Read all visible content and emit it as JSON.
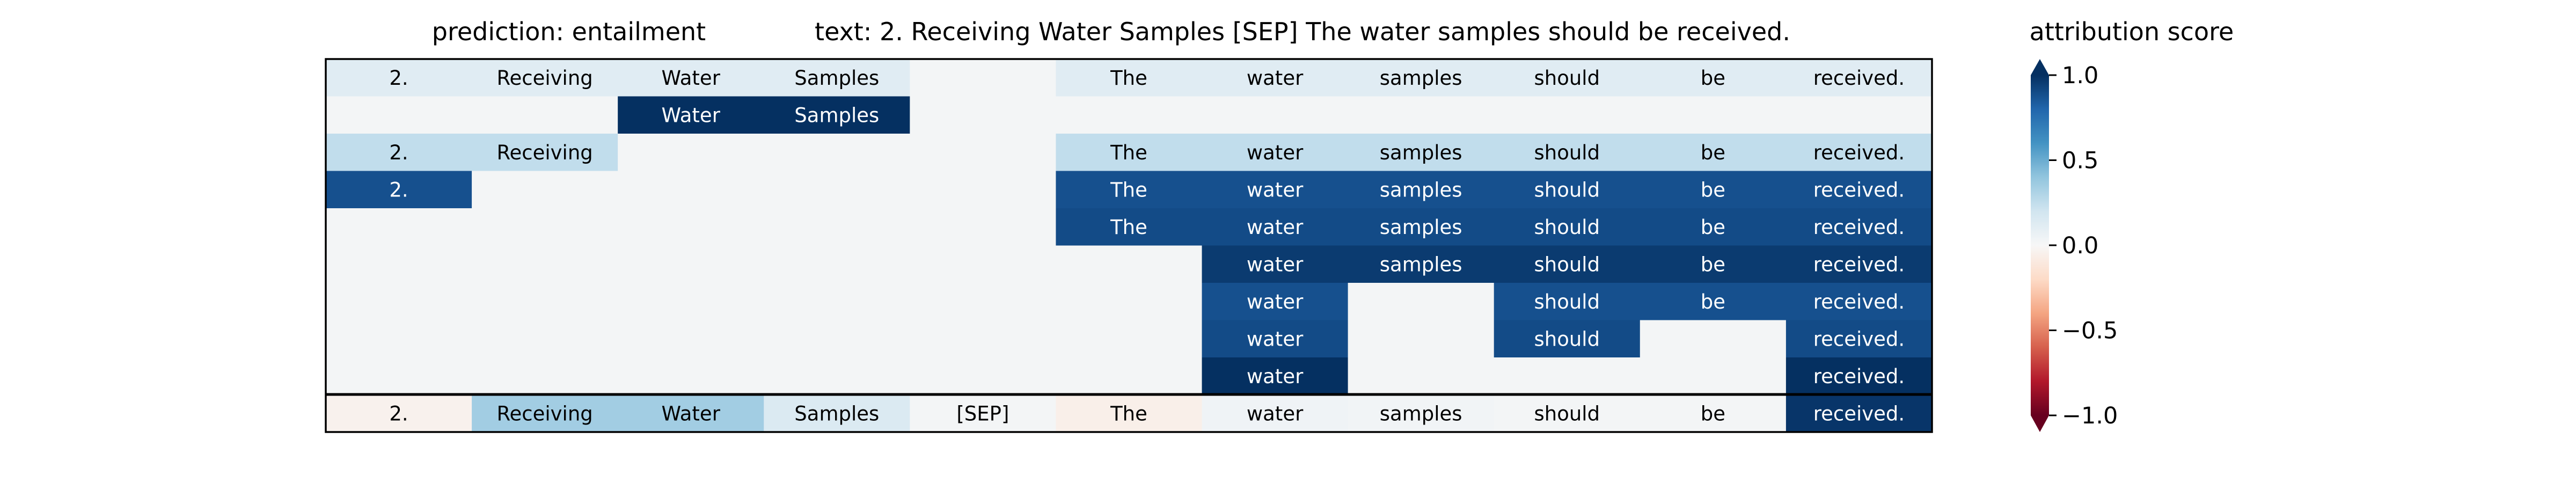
{
  "chart_data": {
    "type": "heatmap",
    "title_prediction": "prediction:  entailment",
    "title_text": "text:  2. Receiving Water Samples [SEP] The water samples should be received.",
    "colorbar": {
      "label": "attribution score",
      "ticks": [
        "1.0",
        "0.5",
        "0.0",
        "−0.5",
        "−1.0"
      ],
      "tick_values": [
        1.0,
        0.5,
        0.0,
        -0.5,
        -1.0
      ],
      "range": [
        -1.0,
        1.0
      ],
      "colormap": "RdBu"
    },
    "tokens": [
      "2.",
      "Receiving",
      "Water",
      "Samples",
      "[SEP]",
      "The",
      "water",
      "samples",
      "should",
      "be",
      "received."
    ],
    "rows": [
      [
        0.12,
        0.12,
        0.12,
        0.12,
        null,
        0.12,
        0.12,
        0.12,
        0.12,
        0.12,
        0.12
      ],
      [
        null,
        null,
        1.0,
        1.0,
        null,
        null,
        null,
        null,
        null,
        null,
        null
      ],
      [
        0.25,
        0.25,
        null,
        null,
        null,
        0.25,
        0.25,
        0.25,
        0.25,
        0.25,
        0.25
      ],
      [
        0.88,
        null,
        null,
        null,
        null,
        0.88,
        0.88,
        0.88,
        0.88,
        0.88,
        0.88
      ],
      [
        null,
        null,
        null,
        null,
        null,
        0.9,
        0.9,
        0.9,
        0.9,
        0.9,
        0.9
      ],
      [
        null,
        null,
        null,
        null,
        null,
        null,
        0.96,
        0.96,
        0.96,
        0.96,
        0.96
      ],
      [
        null,
        null,
        null,
        null,
        null,
        null,
        0.88,
        null,
        0.88,
        0.88,
        0.88
      ],
      [
        null,
        null,
        null,
        null,
        null,
        null,
        0.9,
        null,
        0.9,
        null,
        0.9
      ],
      [
        null,
        null,
        null,
        null,
        null,
        null,
        1.0,
        null,
        null,
        null,
        1.0
      ]
    ],
    "attribution_row": [
      -0.04,
      0.35,
      0.35,
      0.15,
      0.02,
      -0.06,
      0.04,
      0.03,
      0.02,
      0.02,
      0.98
    ]
  }
}
